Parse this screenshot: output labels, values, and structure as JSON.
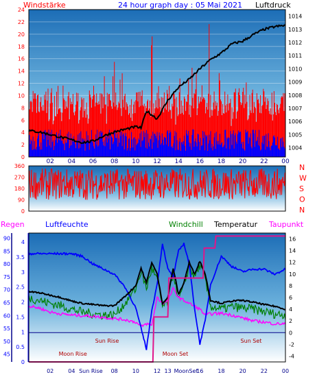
{
  "header": {
    "left_label": "Windstärke",
    "title": "24 hour graph day : 05 Mai 2021",
    "right_label": "Luftdruck"
  },
  "colors": {
    "wind": "#ff0000",
    "gust_bars": "#0000ff",
    "pressure": "#000000",
    "humidity": "#0000ff",
    "temperature": "#000000",
    "windchill": "#008000",
    "dewpoint": "#ff00ff",
    "rain": "#0000ff"
  },
  "chart_data": [
    {
      "type": "bar",
      "title": "24 hour graph day : 05 Mai 2021",
      "ylabel": "Windstärke",
      "y2label": "Luftdruck",
      "x_ticks": [
        "02",
        "04",
        "06",
        "08",
        "10",
        "12",
        "14",
        "16",
        "18",
        "20",
        "22",
        "00"
      ],
      "y_ticks": [
        0,
        2,
        4,
        6,
        8,
        10,
        12,
        14,
        16,
        18,
        20,
        22,
        24
      ],
      "y2_ticks": [
        1004,
        1005,
        1006,
        1007,
        1008,
        1009,
        1010,
        1011,
        1012,
        1013,
        1014
      ],
      "ylim": [
        0,
        24
      ],
      "y2lim": [
        1003.3,
        1014.5
      ],
      "series": [
        {
          "name": "Windstärke",
          "kind": "bar",
          "x": [
            0,
            1,
            2,
            3,
            4,
            5,
            6,
            7,
            8,
            9,
            10,
            11,
            12,
            13,
            14,
            15,
            16,
            17,
            18,
            19,
            20,
            21,
            22,
            23
          ],
          "values": [
            14,
            12,
            11,
            13,
            10,
            9,
            11,
            15,
            16,
            13,
            12,
            23,
            18,
            14,
            19,
            17,
            24,
            14,
            13,
            12,
            13,
            11,
            10,
            9
          ]
        },
        {
          "name": "Luftdruck",
          "kind": "line",
          "x": [
            0,
            1,
            2,
            3,
            4,
            5,
            6,
            7,
            8,
            9,
            10,
            10.5,
            11,
            12,
            13,
            14,
            15,
            16,
            17,
            18,
            19,
            20,
            21,
            22,
            23,
            24
          ],
          "values": [
            1005.3,
            1005.2,
            1005.0,
            1004.8,
            1004.6,
            1004.4,
            1004.5,
            1004.9,
            1005.2,
            1005.4,
            1005.6,
            1005.5,
            1006.8,
            1006.2,
            1007.6,
            1008.6,
            1009.2,
            1010.0,
            1010.7,
            1011.2,
            1011.9,
            1012.1,
            1012.6,
            1013.0,
            1013.2,
            1013.3
          ]
        }
      ]
    },
    {
      "type": "line",
      "ylabel": "",
      "y_ticks": [
        0,
        90,
        180,
        270,
        360
      ],
      "y2_ticks": [
        "N",
        "W",
        "S",
        "O",
        "N"
      ],
      "ylim": [
        0,
        360
      ],
      "x_ticks": [
        "02",
        "04",
        "06",
        "08",
        "10",
        "12",
        "14",
        "16",
        "18",
        "20",
        "22",
        "00"
      ],
      "series": [
        {
          "name": "Windrichtung",
          "x": [
            0,
            1,
            2,
            3,
            4,
            5,
            6,
            7,
            8,
            9,
            10,
            11,
            12,
            13,
            14,
            15,
            16,
            17,
            18,
            19,
            20,
            21,
            22,
            23,
            24
          ],
          "values": [
            200,
            280,
            150,
            300,
            180,
            240,
            210,
            260,
            170,
            230,
            250,
            190,
            270,
            220,
            160,
            290,
            200,
            240,
            180,
            260,
            210,
            230,
            190,
            250,
            220
          ]
        }
      ]
    },
    {
      "type": "line",
      "legend": [
        "Regen",
        "Luftfeuchte",
        "Windchill",
        "Temperatur",
        "Taupunkt"
      ],
      "y_ticks_left_rain": [
        0,
        0.5,
        1,
        1.5,
        2,
        2.5,
        3,
        3.5,
        4
      ],
      "y_ticks_left_humidity": [
        45,
        50,
        55,
        60,
        65,
        70,
        75,
        80,
        85,
        90
      ],
      "y_ticks_right": [
        -4,
        -2,
        0,
        2,
        4,
        6,
        8,
        10,
        12,
        14,
        16
      ],
      "ylim": [
        -5,
        17
      ],
      "x_ticks": [
        "02",
        "04",
        "Sun Rise",
        "08",
        "10",
        "12",
        "13",
        "MoonSet",
        "16",
        "18",
        "20",
        "22",
        "00"
      ],
      "annotations": [
        "Sun Rise",
        "Moon Rise",
        "Moon Set",
        "Sun Set"
      ],
      "series": [
        {
          "name": "Luftfeuchte",
          "x": [
            0,
            1,
            2,
            3,
            4,
            5,
            6,
            7,
            8,
            9,
            10,
            10.5,
            11,
            11.5,
            12,
            12.5,
            13,
            13.5,
            14,
            14.5,
            15,
            15.5,
            16,
            16.5,
            17,
            18,
            19,
            20,
            21,
            22,
            23,
            24
          ],
          "values": [
            84,
            84,
            84,
            84,
            84,
            83,
            80,
            78,
            76,
            71,
            63,
            55,
            47,
            62,
            72,
            88,
            78,
            75,
            85,
            88,
            80,
            63,
            49,
            58,
            72,
            83,
            79,
            77,
            78,
            78,
            76,
            78
          ]
        },
        {
          "name": "Temperatur",
          "x": [
            0,
            1,
            2,
            3,
            4,
            5,
            6,
            7,
            8,
            9,
            10,
            10.5,
            11,
            11.5,
            12,
            12.5,
            13,
            13.5,
            14,
            14.5,
            15,
            15.5,
            16,
            16.5,
            17,
            18,
            19,
            20,
            21,
            22,
            23,
            24
          ],
          "values": [
            7.0,
            6.8,
            6.4,
            6.0,
            5.4,
            5.0,
            4.8,
            4.6,
            4.6,
            6.2,
            8.0,
            11.0,
            8.5,
            12.0,
            10.0,
            5.0,
            6.0,
            11.0,
            6.5,
            8.5,
            12.0,
            10.0,
            12.2,
            10.0,
            5.5,
            5.0,
            5.4,
            5.5,
            5.2,
            4.8,
            4.5,
            4.0
          ]
        },
        {
          "name": "Windchill",
          "x": [
            0,
            1,
            2,
            3,
            4,
            5,
            6,
            7,
            8,
            9,
            10,
            10.5,
            11,
            11.5,
            12,
            12.5,
            13,
            13.5,
            14,
            14.5,
            15,
            15.5,
            16,
            16.5,
            17,
            18,
            19,
            20,
            21,
            22,
            23,
            24
          ],
          "values": [
            6.0,
            5.5,
            5.0,
            4.6,
            4.0,
            3.5,
            3.2,
            3.0,
            3.0,
            5.0,
            7.5,
            10.5,
            7.5,
            11.0,
            9.0,
            4.5,
            5.0,
            10.5,
            5.5,
            8.0,
            11.5,
            9.5,
            11.5,
            9.0,
            4.5,
            4.0,
            4.4,
            4.2,
            4.0,
            3.6,
            3.2,
            3.0
          ]
        },
        {
          "name": "Taupunkt",
          "x": [
            0,
            1,
            2,
            3,
            4,
            5,
            6,
            7,
            8,
            9,
            10,
            10.5,
            11,
            11.5,
            12,
            12.5,
            13,
            13.5,
            14,
            14.5,
            15,
            15.5,
            16,
            16.5,
            17,
            18,
            19,
            20,
            21,
            22,
            23,
            24
          ],
          "values": [
            4.5,
            4.2,
            3.5,
            3.2,
            3.0,
            2.9,
            2.8,
            2.6,
            2.4,
            2.2,
            1.8,
            1.0,
            1.5,
            1.3,
            6.0,
            5.0,
            5.5,
            7.5,
            6.0,
            5.5,
            5.0,
            4.5,
            4.0,
            3.0,
            3.2,
            3.3,
            3.0,
            2.5,
            2.0,
            1.8,
            1.5,
            1.5
          ]
        },
        {
          "name": "Regen",
          "x": [
            0,
            11.6,
            11.7,
            13.0,
            13.1,
            16.3,
            16.4,
            17.4,
            17.5,
            24
          ],
          "values": [
            0,
            0,
            1.5,
            1.5,
            2.8,
            2.8,
            3.8,
            3.8,
            4.2,
            4.2
          ]
        }
      ]
    }
  ]
}
